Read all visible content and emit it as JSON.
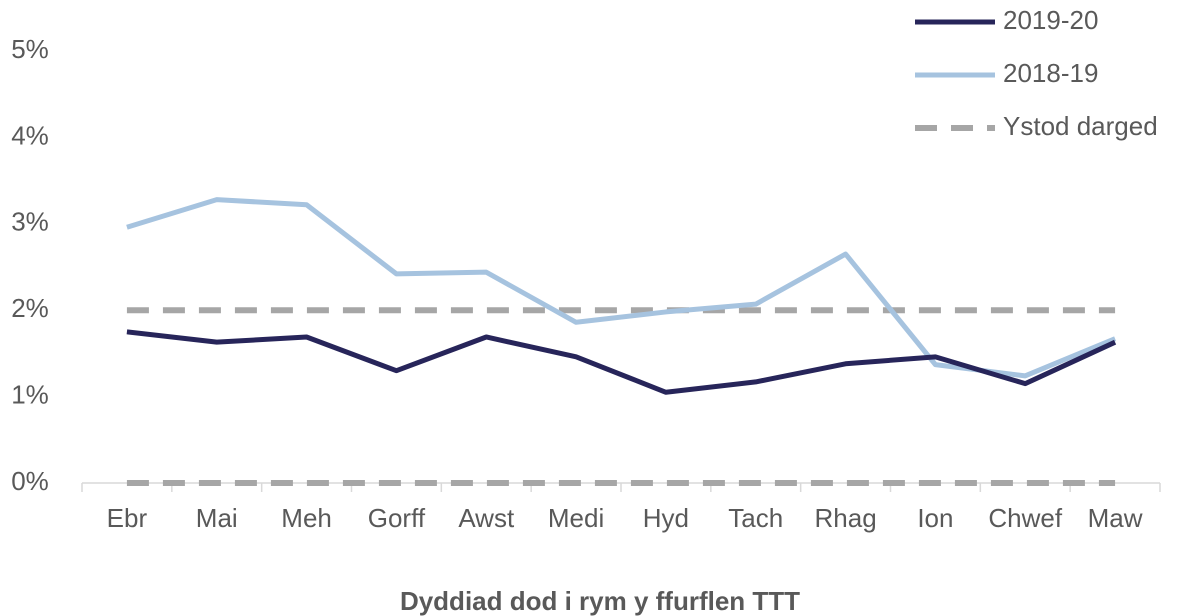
{
  "chart_data": {
    "type": "line",
    "x_label": "Dyddiad dod i rym y ffurflen TTT",
    "categories": [
      "Ebr",
      "Mai",
      "Meh",
      "Gorff",
      "Awst",
      "Medi",
      "Hyd",
      "Tach",
      "Rhag",
      "Ion",
      "Chwef",
      "Maw"
    ],
    "series": [
      {
        "name": "2019-20",
        "color": "#27255a",
        "values": [
          1.75,
          1.63,
          1.69,
          1.3,
          1.69,
          1.46,
          1.05,
          1.17,
          1.38,
          1.46,
          1.15,
          1.63
        ]
      },
      {
        "name": "2018-19",
        "color": "#a6c3df",
        "values": [
          2.96,
          3.28,
          3.22,
          2.42,
          2.44,
          1.86,
          1.98,
          2.07,
          2.65,
          1.37,
          1.24,
          1.67
        ]
      },
      {
        "name": "Ystod darged",
        "color": "#a6a6a6",
        "dashed": true,
        "values": [
          2,
          2,
          2,
          2,
          2,
          2,
          2,
          2,
          2,
          2,
          2,
          2
        ],
        "lower": [
          0,
          0,
          0,
          0,
          0,
          0,
          0,
          0,
          0,
          0,
          0,
          0
        ]
      }
    ],
    "ylim": [
      0,
      5
    ],
    "yticks": [
      {
        "value": 0,
        "label": "0%"
      },
      {
        "value": 1,
        "label": "1%"
      },
      {
        "value": 2,
        "label": "2%"
      },
      {
        "value": 3,
        "label": "3%"
      },
      {
        "value": 4,
        "label": "4%"
      },
      {
        "value": 5,
        "label": "5%"
      }
    ],
    "grid": false,
    "legend": "top-right"
  }
}
